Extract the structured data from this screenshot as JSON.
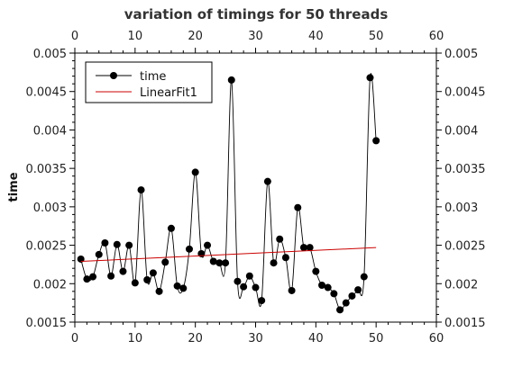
{
  "chart_data": {
    "type": "scatter",
    "title": "variation of timings for 50 threads",
    "xlabel": "",
    "ylabel": "time",
    "xlim": [
      0,
      60
    ],
    "ylim": [
      0.0015,
      0.005
    ],
    "x_ticks": [
      "0",
      "10",
      "20",
      "30",
      "40",
      "50",
      "60"
    ],
    "y_ticks": [
      "0.0015",
      "0.002",
      "0.0025",
      "0.003",
      "0.0035",
      "0.004",
      "0.0045",
      "0.005"
    ],
    "grid": false,
    "legend_position": "top-left",
    "series": [
      {
        "name": "time",
        "color": "#000000",
        "marker": "circle",
        "line": "smooth",
        "x": [
          1,
          2,
          3,
          4,
          5,
          6,
          7,
          8,
          9,
          10,
          11,
          12,
          13,
          14,
          15,
          16,
          17,
          18,
          19,
          20,
          21,
          22,
          23,
          24,
          25,
          26,
          27,
          28,
          29,
          30,
          31,
          32,
          33,
          34,
          35,
          36,
          37,
          38,
          39,
          40,
          41,
          42,
          43,
          44,
          45,
          46,
          47,
          48,
          49,
          50
        ],
        "values": [
          0.00232,
          0.00206,
          0.00209,
          0.00238,
          0.00253,
          0.0021,
          0.00251,
          0.00216,
          0.0025,
          0.00201,
          0.00322,
          0.00205,
          0.00214,
          0.0019,
          0.00228,
          0.00272,
          0.00197,
          0.00194,
          0.00245,
          0.00345,
          0.00239,
          0.0025,
          0.00229,
          0.00227,
          0.00227,
          0.00465,
          0.00203,
          0.00196,
          0.0021,
          0.00195,
          0.00178,
          0.00333,
          0.00227,
          0.00258,
          0.00234,
          0.00191,
          0.00299,
          0.00247,
          0.00247,
          0.00216,
          0.00198,
          0.00195,
          0.00187,
          0.00166,
          0.00175,
          0.00184,
          0.00192,
          0.00209,
          0.00468,
          0.00386
        ]
      },
      {
        "name": "LinearFit1",
        "color": "#cc0000",
        "line": "straight",
        "x": [
          1,
          50
        ],
        "values": [
          0.00229,
          0.00247
        ]
      }
    ]
  }
}
